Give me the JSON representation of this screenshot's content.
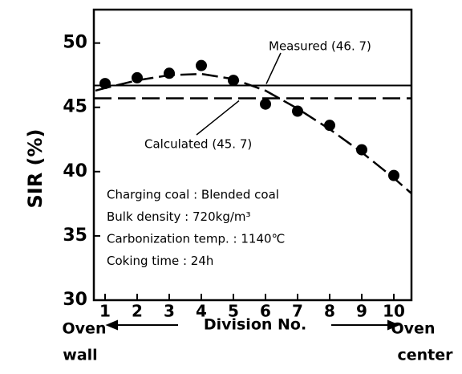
{
  "chart_data": {
    "type": "scatter",
    "ylabel": "SIR (%)",
    "xlabel": "Division No.",
    "x_left_label": [
      "Oven",
      "wall"
    ],
    "x_right_label": [
      "Oven",
      "center"
    ],
    "x": [
      1,
      2,
      3,
      4,
      5,
      6,
      7,
      8,
      9,
      10
    ],
    "values": [
      46.85,
      47.3,
      47.65,
      48.25,
      47.1,
      45.25,
      44.7,
      43.6,
      41.7,
      39.7
    ],
    "curve": {
      "x": [
        0.7,
        1,
        2,
        3,
        4,
        5,
        6,
        7,
        8,
        9,
        10,
        10.55
      ],
      "y": [
        46.3,
        46.5,
        47.1,
        47.5,
        47.6,
        47.2,
        46.3,
        44.9,
        43.3,
        41.5,
        39.5,
        38.3
      ]
    },
    "measured": {
      "label": "Measured (46. 7)",
      "value": 46.7
    },
    "calculated": {
      "label": "Calculated (45. 7)",
      "value": 45.7
    },
    "notes": [
      "Charging coal : Blended coal",
      "Bulk density : 720kg/m³",
      "Carbonization temp. : 1140℃",
      "Coking time : 24h"
    ],
    "xlim": [
      0.65,
      10.55
    ],
    "ylim": [
      30,
      52.6
    ],
    "xticks": [
      1,
      2,
      3,
      4,
      5,
      6,
      7,
      8,
      9,
      10
    ],
    "yticks": [
      30,
      35,
      40,
      45,
      50
    ]
  }
}
